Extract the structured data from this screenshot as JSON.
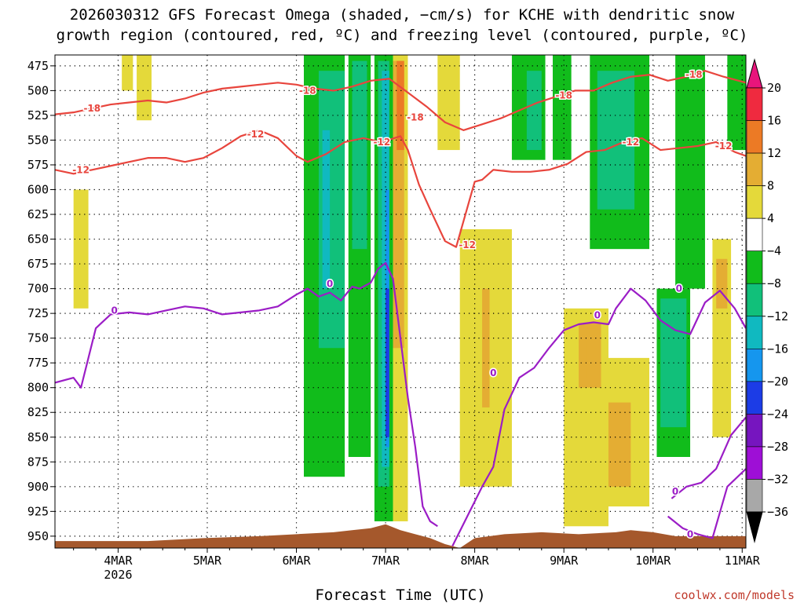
{
  "chart_data": {
    "type": "heatmap",
    "title_line1": "2026030312 GFS Forecast Omega (shaded, −cm/s) for KCHE with dendritic snow",
    "title_line2": "growth region (contoured, red, ºC) and freezing level (contoured, purple, ºC)",
    "xlabel": "Forecast Time (UTC)",
    "credit": "coolwx.com/models",
    "x_ticks": [
      {
        "label": "4MAR",
        "sub": "2026",
        "hour": 12
      },
      {
        "label": "5MAR",
        "sub": "",
        "hour": 36
      },
      {
        "label": "6MAR",
        "sub": "",
        "hour": 60
      },
      {
        "label": "7MAR",
        "sub": "",
        "hour": 84
      },
      {
        "label": "8MAR",
        "sub": "",
        "hour": 108
      },
      {
        "label": "9MAR",
        "sub": "",
        "hour": 132
      },
      {
        "label": "10MAR",
        "sub": "",
        "hour": 156
      },
      {
        "label": "11MAR",
        "sub": "",
        "hour": 180
      }
    ],
    "x_range_hours": [
      -5,
      181
    ],
    "y_ticks": [
      "475",
      "500",
      "525",
      "550",
      "575",
      "600",
      "625",
      "650",
      "675",
      "700",
      "725",
      "750",
      "775",
      "800",
      "825",
      "850",
      "875",
      "900",
      "925",
      "950"
    ],
    "y_range_hpa": [
      464,
      962
    ],
    "grid": "dotted",
    "colorbar": {
      "placement": "right",
      "ticks": [
        "20",
        "16",
        "12",
        "8",
        "4",
        "−4",
        "−8",
        "−12",
        "−16",
        "−20",
        "−24",
        "−28",
        "−32",
        "−36"
      ],
      "colors": [
        "#ef2a3f",
        "#ec7a25",
        "#e4ad33",
        "#e4d93a",
        "#ffffff",
        "#11bc1b",
        "#11c07a",
        "#10b9c0",
        "#1596ee",
        "#1c3ce6",
        "#7615bf",
        "#9e0fd6",
        "#a8a8a8"
      ],
      "top_arrow_color": "#e8157c",
      "bottom_arrow_color": "#000000"
    },
    "omega_bands": [
      {
        "x": [
          62,
          73
        ],
        "p": [
          464,
          890
        ],
        "value": -8
      },
      {
        "x": [
          66,
          73
        ],
        "p": [
          480,
          760
        ],
        "value": -12
      },
      {
        "x": [
          67,
          69
        ],
        "p": [
          540,
          700
        ],
        "value": -16
      },
      {
        "x": [
          74,
          80
        ],
        "p": [
          464,
          870
        ],
        "value": -8
      },
      {
        "x": [
          75,
          79
        ],
        "p": [
          470,
          660
        ],
        "value": -12
      },
      {
        "x": [
          81,
          86
        ],
        "p": [
          464,
          935
        ],
        "value": -8
      },
      {
        "x": [
          82,
          85
        ],
        "p": [
          470,
          900
        ],
        "value": -12
      },
      {
        "x": [
          83,
          85
        ],
        "p": [
          480,
          880
        ],
        "value": -16
      },
      {
        "x": [
          84,
          85
        ],
        "p": [
          600,
          860
        ],
        "value": -20
      },
      {
        "x": [
          84,
          85
        ],
        "p": [
          700,
          850
        ],
        "value": -24
      },
      {
        "x": [
          86,
          90
        ],
        "p": [
          464,
          935
        ],
        "value": 4
      },
      {
        "x": [
          86,
          89
        ],
        "p": [
          470,
          760
        ],
        "value": 12
      },
      {
        "x": [
          87,
          89
        ],
        "p": [
          470,
          560
        ],
        "value": 16
      },
      {
        "x": [
          98,
          104
        ],
        "p": [
          464,
          560
        ],
        "value": 4
      },
      {
        "x": [
          104,
          118
        ],
        "p": [
          640,
          900
        ],
        "value": 4
      },
      {
        "x": [
          110,
          112
        ],
        "p": [
          700,
          820
        ],
        "value": 8
      },
      {
        "x": [
          118,
          127
        ],
        "p": [
          464,
          570
        ],
        "value": -8
      },
      {
        "x": [
          122,
          126
        ],
        "p": [
          480,
          560
        ],
        "value": -12
      },
      {
        "x": [
          129,
          134
        ],
        "p": [
          464,
          570
        ],
        "value": -8
      },
      {
        "x": [
          132,
          144
        ],
        "p": [
          720,
          940
        ],
        "value": 4
      },
      {
        "x": [
          136,
          142
        ],
        "p": [
          735,
          800
        ],
        "value": 8
      },
      {
        "x": [
          138,
          140
        ],
        "p": [
          740,
          790
        ],
        "value": 12
      },
      {
        "x": [
          143,
          155
        ],
        "p": [
          770,
          920
        ],
        "value": 4
      },
      {
        "x": [
          144,
          150
        ],
        "p": [
          815,
          900
        ],
        "value": 12
      },
      {
        "x": [
          139,
          155
        ],
        "p": [
          464,
          660
        ],
        "value": -8
      },
      {
        "x": [
          141,
          151
        ],
        "p": [
          480,
          620
        ],
        "value": -12
      },
      {
        "x": [
          157,
          166
        ],
        "p": [
          700,
          870
        ],
        "value": -8
      },
      {
        "x": [
          158,
          165
        ],
        "p": [
          710,
          840
        ],
        "value": -12
      },
      {
        "x": [
          162,
          170
        ],
        "p": [
          464,
          700
        ],
        "value": -8
      },
      {
        "x": [
          172,
          177
        ],
        "p": [
          650,
          850
        ],
        "value": 4
      },
      {
        "x": [
          173,
          176
        ],
        "p": [
          670,
          720
        ],
        "value": 12
      },
      {
        "x": [
          176,
          181
        ],
        "p": [
          464,
          560
        ],
        "value": -8
      },
      {
        "x": [
          0,
          4
        ],
        "p": [
          600,
          720
        ],
        "value": 4
      },
      {
        "x": [
          13,
          16
        ],
        "p": [
          464,
          500
        ],
        "value": 4
      },
      {
        "x": [
          17,
          21
        ],
        "p": [
          464,
          530
        ],
        "value": 4
      }
    ],
    "series": [
      {
        "value_label": "-18",
        "color": "#e8453d",
        "x": [
          -5,
          0,
          5,
          10,
          15,
          20,
          25,
          30,
          35,
          40,
          45,
          50,
          55,
          60,
          65,
          70,
          75,
          80,
          85,
          90,
          95,
          100,
          105,
          110,
          115,
          120,
          125,
          130,
          135,
          140,
          145,
          150,
          155,
          160,
          165,
          170,
          175,
          181
        ],
        "y": [
          524,
          522,
          518,
          514,
          512,
          510,
          512,
          508,
          502,
          498,
          496,
          494,
          492,
          494,
          498,
          500,
          496,
          490,
          488,
          502,
          516,
          532,
          540,
          534,
          528,
          520,
          512,
          506,
          500,
          500,
          492,
          486,
          484,
          490,
          486,
          480,
          486,
          492
        ],
        "labels": [
          {
            "x": 5,
            "y": 518
          },
          {
            "x": 63,
            "y": 500
          },
          {
            "x": 92,
            "y": 527
          },
          {
            "x": 132,
            "y": 505
          },
          {
            "x": 167,
            "y": 484
          }
        ]
      },
      {
        "value_label": "-12",
        "color": "#e8453d",
        "x": [
          -5,
          0,
          5,
          10,
          15,
          20,
          25,
          30,
          35,
          40,
          45,
          50,
          55,
          60,
          63,
          68,
          73,
          78,
          83,
          88,
          90,
          93,
          96,
          100,
          103,
          108,
          110,
          113,
          118,
          123,
          128,
          133,
          138,
          143,
          148,
          153,
          158,
          163,
          168,
          173,
          178,
          181
        ],
        "y": [
          580,
          584,
          580,
          576,
          572,
          568,
          568,
          572,
          568,
          558,
          546,
          540,
          548,
          566,
          572,
          564,
          552,
          548,
          552,
          546,
          560,
          595,
          620,
          652,
          658,
          592,
          590,
          580,
          582,
          582,
          580,
          574,
          562,
          560,
          552,
          548,
          560,
          558,
          556,
          552,
          562,
          566
        ],
        "labels": [
          {
            "x": 2,
            "y": 580
          },
          {
            "x": 49,
            "y": 544
          },
          {
            "x": 83,
            "y": 552
          },
          {
            "x": 106,
            "y": 656
          },
          {
            "x": 150,
            "y": 552
          },
          {
            "x": 175,
            "y": 556
          }
        ]
      },
      {
        "value_label": "0",
        "color": "#9b1dc6",
        "x": [
          -5,
          0,
          2,
          6,
          10,
          15,
          20,
          25,
          30,
          35,
          40,
          45,
          50,
          55,
          60,
          63,
          66,
          69,
          72,
          75,
          77,
          80,
          82,
          84,
          86,
          90,
          92,
          94,
          96,
          98
        ],
        "y": [
          795,
          790,
          800,
          740,
          726,
          724,
          726,
          722,
          718,
          720,
          726,
          724,
          722,
          718,
          706,
          700,
          708,
          704,
          712,
          698,
          700,
          694,
          680,
          674,
          690,
          810,
          860,
          920,
          935,
          940
        ],
        "labels": [
          {
            "x": 11,
            "y": 722
          },
          {
            "x": 69,
            "y": 695
          }
        ]
      },
      {
        "value_label": "0",
        "color": "#9b1dc6",
        "x": [
          102,
          106,
          110,
          113,
          116,
          120,
          124,
          128,
          132,
          136,
          140,
          144,
          146,
          150,
          154,
          158,
          162,
          166,
          170,
          174,
          178,
          181
        ],
        "y": [
          960,
          930,
          900,
          880,
          822,
          790,
          780,
          760,
          742,
          736,
          734,
          736,
          720,
          700,
          712,
          732,
          742,
          746,
          714,
          702,
          720,
          740
        ],
        "labels": [
          {
            "x": 113,
            "y": 785
          },
          {
            "x": 141,
            "y": 727
          },
          {
            "x": 163,
            "y": 700
          }
        ]
      },
      {
        "value_label": "0",
        "color": "#9b1dc6",
        "x": [
          161,
          165,
          169,
          173,
          177,
          181
        ],
        "y": [
          912,
          900,
          896,
          882,
          848,
          830
        ],
        "labels": [
          {
            "x": 162,
            "y": 905
          },
          {
            "x": 166,
            "y": 948
          }
        ]
      },
      {
        "value_label": "0",
        "color": "#9b1dc6",
        "x": [
          160,
          164,
          168,
          172,
          176,
          181
        ],
        "y": [
          930,
          942,
          948,
          952,
          900,
          882
        ],
        "labels": []
      }
    ],
    "terrain": {
      "color": "#a5582c",
      "x": [
        -5,
        0,
        20,
        35,
        50,
        60,
        70,
        75,
        80,
        84,
        88,
        92,
        96,
        100,
        104,
        108,
        116,
        126,
        136,
        146,
        150,
        156,
        162,
        170,
        181
      ],
      "p": [
        955,
        955,
        955,
        952,
        950,
        948,
        946,
        944,
        942,
        938,
        944,
        948,
        952,
        958,
        962,
        952,
        948,
        946,
        948,
        946,
        944,
        946,
        950,
        950,
        950
      ]
    }
  }
}
